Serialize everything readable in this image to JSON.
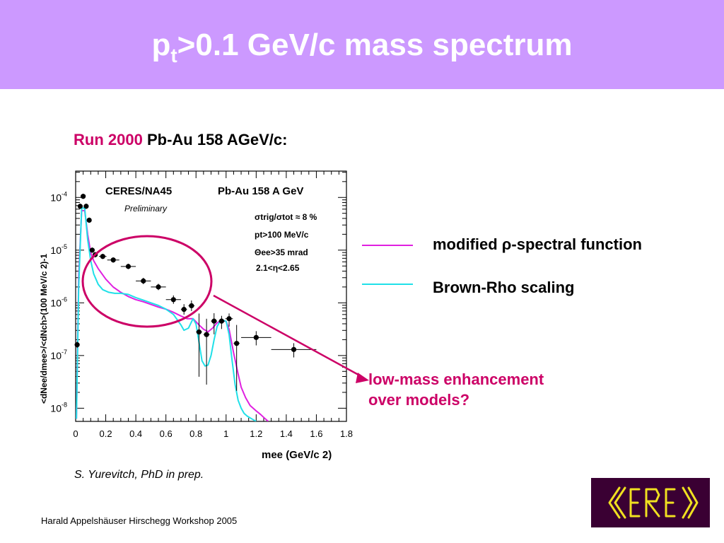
{
  "slide": {
    "title_main": "p",
    "title_sub": "t",
    "title_rest": ">0.1 GeV/c mass spectrum",
    "run_label": "Run 2000",
    "run_system": "Pb-Au 158 AGeV/c:",
    "credit": "S. Yurevitch, PhD in prep.",
    "footer": "Harald Appelshäuser  Hirschegg Workshop 2005",
    "callout_line1": "low-mass enhancement",
    "callout_line2": "over models?",
    "logo_text": "CERES",
    "colors": {
      "banner": "#cc99ff",
      "accent": "#cc0066",
      "magenta": "#e020e0",
      "cyan": "#20e0e8",
      "logo_bg": "#3a0033",
      "logo_fg": "#f0e020"
    }
  },
  "legend": [
    {
      "label": "modified ρ-spectral function",
      "color": "#e020e0"
    },
    {
      "label": "Brown-Rho scaling",
      "color": "#20e0e8"
    }
  ],
  "chart_data": {
    "type": "scatter",
    "title": "CERES/NA45",
    "system": "Pb-Au 158 A GeV",
    "preliminary": "Preliminary",
    "cuts": [
      "σtrig/σtot ≈ 8 %",
      "pt>100 MeV/c",
      "Θee>35 mrad",
      "2.1<η<2.65"
    ],
    "xlabel": "mee (GeV/c 2)",
    "ylabel": "<dNee/dmee>/<dNch>(100 MeV/c 2)-1",
    "xlim": [
      0,
      1.8
    ],
    "ylim_log10": [
      -8.25,
      -3.5
    ],
    "y_log": true,
    "x_ticks": [
      "0",
      "0.2",
      "0.4",
      "0.6",
      "0.8",
      "1",
      "1.2",
      "1.4",
      "1.6",
      "1.8"
    ],
    "y_ticks": [
      {
        "base": "10",
        "exp": "-4",
        "value": -4
      },
      {
        "base": "10",
        "exp": "-5",
        "value": -5
      },
      {
        "base": "10",
        "exp": "-6",
        "value": -6
      },
      {
        "base": "10",
        "exp": "-7",
        "value": -7
      },
      {
        "base": "10",
        "exp": "-8",
        "value": -8
      }
    ],
    "points": [
      {
        "x": 0.01,
        "y": 1.6e-07,
        "xerr": 0,
        "yerr_lo": 0.06,
        "yerr_hi": 0.06
      },
      {
        "x": 0.03,
        "y": 6.8e-05,
        "xerr": 0,
        "yerr_lo": 0.05,
        "yerr_hi": 0.05
      },
      {
        "x": 0.05,
        "y": 0.000105,
        "xerr": 0.005,
        "yerr_lo": 0.05,
        "yerr_hi": 0.05
      },
      {
        "x": 0.07,
        "y": 6.8e-05,
        "xerr": 0,
        "yerr_lo": 0.05,
        "yerr_hi": 0.05
      },
      {
        "x": 0.09,
        "y": 3.7e-05,
        "xerr": 0,
        "yerr_lo": 0.05,
        "yerr_hi": 0.05
      },
      {
        "x": 0.11,
        "y": 1e-05,
        "xerr": 0,
        "yerr_lo": 0.05,
        "yerr_hi": 0.05
      },
      {
        "x": 0.13,
        "y": 8.2e-06,
        "xerr": 0.01,
        "yerr_lo": 0.05,
        "yerr_hi": 0.05
      },
      {
        "x": 0.18,
        "y": 7.6e-06,
        "xerr": 0.025,
        "yerr_lo": 0.05,
        "yerr_hi": 0.05
      },
      {
        "x": 0.25,
        "y": 6.5e-06,
        "xerr": 0.04,
        "yerr_lo": 0.05,
        "yerr_hi": 0.05
      },
      {
        "x": 0.35,
        "y": 4.9e-06,
        "xerr": 0.05,
        "yerr_lo": 0.05,
        "yerr_hi": 0.05
      },
      {
        "x": 0.45,
        "y": 2.6e-06,
        "xerr": 0.05,
        "yerr_lo": 0.06,
        "yerr_hi": 0.06
      },
      {
        "x": 0.55,
        "y": 2e-06,
        "xerr": 0.05,
        "yerr_lo": 0.06,
        "yerr_hi": 0.06
      },
      {
        "x": 0.65,
        "y": 1.15e-06,
        "xerr": 0.05,
        "yerr_lo": 0.08,
        "yerr_hi": 0.08
      },
      {
        "x": 0.72,
        "y": 7.5e-07,
        "xerr": 0.02,
        "yerr_lo": 0.1,
        "yerr_hi": 0.1
      },
      {
        "x": 0.77,
        "y": 8.8e-07,
        "xerr": 0.02,
        "yerr_lo": 0.1,
        "yerr_hi": 0.1
      },
      {
        "x": 0.82,
        "y": 2.8e-07,
        "xerr": 0.02,
        "yerr_lo": 0.85,
        "yerr_hi": 0.35
      },
      {
        "x": 0.87,
        "y": 2.5e-07,
        "xerr": 0.02,
        "yerr_lo": 0.95,
        "yerr_hi": 0.3
      },
      {
        "x": 0.92,
        "y": 4.5e-07,
        "xerr": 0.02,
        "yerr_lo": 0.25,
        "yerr_hi": 0.15
      },
      {
        "x": 0.97,
        "y": 4.5e-07,
        "xerr": 0.02,
        "yerr_lo": 0.15,
        "yerr_hi": 0.1
      },
      {
        "x": 1.02,
        "y": 5e-07,
        "xerr": 0.025,
        "yerr_lo": 0.15,
        "yerr_hi": 0.1
      },
      {
        "x": 1.07,
        "y": 1.7e-07,
        "xerr": 0.02,
        "yerr_lo": 0.9,
        "yerr_hi": 0.35
      },
      {
        "x": 1.2,
        "y": 2.2e-07,
        "xerr": 0.1,
        "yerr_lo": 0.15,
        "yerr_hi": 0.12
      },
      {
        "x": 1.45,
        "y": 1.3e-07,
        "xerr": 0.15,
        "yerr_lo": 0.15,
        "yerr_hi": 0.12
      }
    ],
    "series": [
      {
        "name": "modified ρ-spectral function",
        "color": "#e020e0",
        "x": [
          0.005,
          0.02,
          0.04,
          0.06,
          0.08,
          0.1,
          0.12,
          0.15,
          0.2,
          0.25,
          0.3,
          0.35,
          0.4,
          0.45,
          0.5,
          0.55,
          0.6,
          0.65,
          0.7,
          0.74,
          0.78,
          0.82,
          0.85,
          0.88,
          0.91,
          0.94,
          0.97,
          1.0,
          1.02,
          1.05,
          1.08,
          1.1,
          1.13,
          1.16,
          1.2,
          1.23,
          1.26,
          1.28
        ],
        "y": [
          -8.2,
          -5.5,
          -4.25,
          -4.25,
          -4.7,
          -5.05,
          -5.2,
          -5.35,
          -5.55,
          -5.7,
          -5.8,
          -5.88,
          -5.94,
          -5.98,
          -6.03,
          -6.08,
          -6.12,
          -6.18,
          -6.25,
          -6.3,
          -6.3,
          -6.42,
          -6.5,
          -6.55,
          -6.48,
          -6.38,
          -6.34,
          -6.35,
          -6.5,
          -6.95,
          -7.35,
          -7.6,
          -7.8,
          -7.95,
          -8.05,
          -8.12,
          -8.2,
          -8.25
        ]
      },
      {
        "name": "Brown-Rho scaling",
        "color": "#20e0e8",
        "x": [
          0.005,
          0.02,
          0.04,
          0.06,
          0.08,
          0.1,
          0.12,
          0.15,
          0.18,
          0.22,
          0.26,
          0.3,
          0.35,
          0.4,
          0.45,
          0.5,
          0.55,
          0.6,
          0.65,
          0.7,
          0.72,
          0.75,
          0.78,
          0.8,
          0.82,
          0.84,
          0.86,
          0.88,
          0.9,
          0.92,
          0.94,
          0.96,
          0.98,
          1.0,
          1.02,
          1.04,
          1.06,
          1.08,
          1.1,
          1.12,
          1.14,
          1.17,
          1.2
        ],
        "y": [
          -8.2,
          -5.7,
          -4.2,
          -4.2,
          -4.8,
          -5.2,
          -5.45,
          -5.65,
          -5.75,
          -5.8,
          -5.82,
          -5.82,
          -5.84,
          -5.9,
          -5.95,
          -6.0,
          -6.05,
          -6.12,
          -6.22,
          -6.42,
          -6.52,
          -6.48,
          -6.3,
          -6.4,
          -6.75,
          -7.1,
          -7.2,
          -7.18,
          -7.0,
          -6.7,
          -6.45,
          -6.35,
          -6.33,
          -6.35,
          -6.6,
          -7.1,
          -7.55,
          -7.85,
          -8.0,
          -8.1,
          -8.15,
          -8.2,
          -8.25
        ]
      }
    ]
  }
}
